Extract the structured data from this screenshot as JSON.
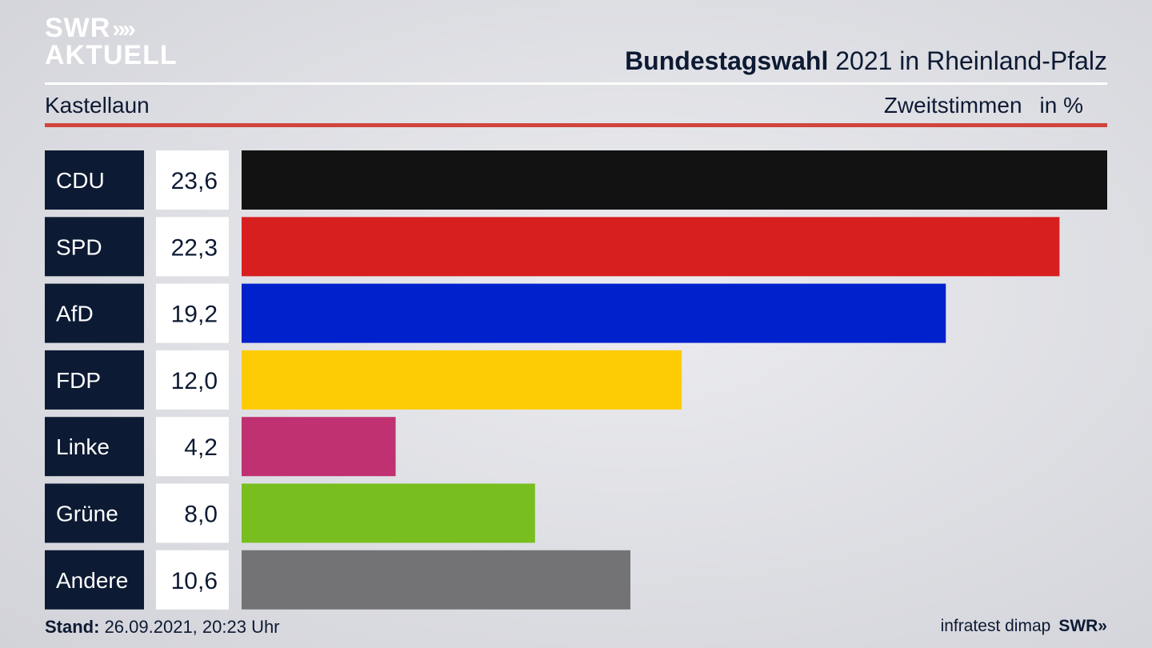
{
  "brand": {
    "logo_line1": "SWR",
    "logo_chevrons": "»",
    "logo_line2": "AKTUELL",
    "footer_logo": "SWR»"
  },
  "header": {
    "title_bold": "Bundestagswahl",
    "title_rest": " 2021 in Rheinland-Pfalz",
    "subtitle": "Kastellaun",
    "measure": "Zweitstimmen",
    "unit": "in %"
  },
  "chart_data": {
    "type": "bar",
    "orientation": "horizontal",
    "categories": [
      "CDU",
      "SPD",
      "AfD",
      "FDP",
      "Linke",
      "Grüne",
      "Andere"
    ],
    "values": [
      23.6,
      22.3,
      19.2,
      12.0,
      4.2,
      8.0,
      10.6
    ],
    "value_labels": [
      "23,6",
      "22,3",
      "19,2",
      "12,0",
      "4,2",
      "8,0",
      "10,6"
    ],
    "colors": [
      "#121212",
      "#d81f20",
      "#0121cc",
      "#fdcb03",
      "#c03171",
      "#78be1e",
      "#737375"
    ],
    "xlim": [
      0,
      23.6
    ],
    "grid": false,
    "legend": "none"
  },
  "footer": {
    "stand_label": "Stand:",
    "stand_value": " 26.09.2021, 20:23 Uhr",
    "source": "infratest dimap"
  }
}
